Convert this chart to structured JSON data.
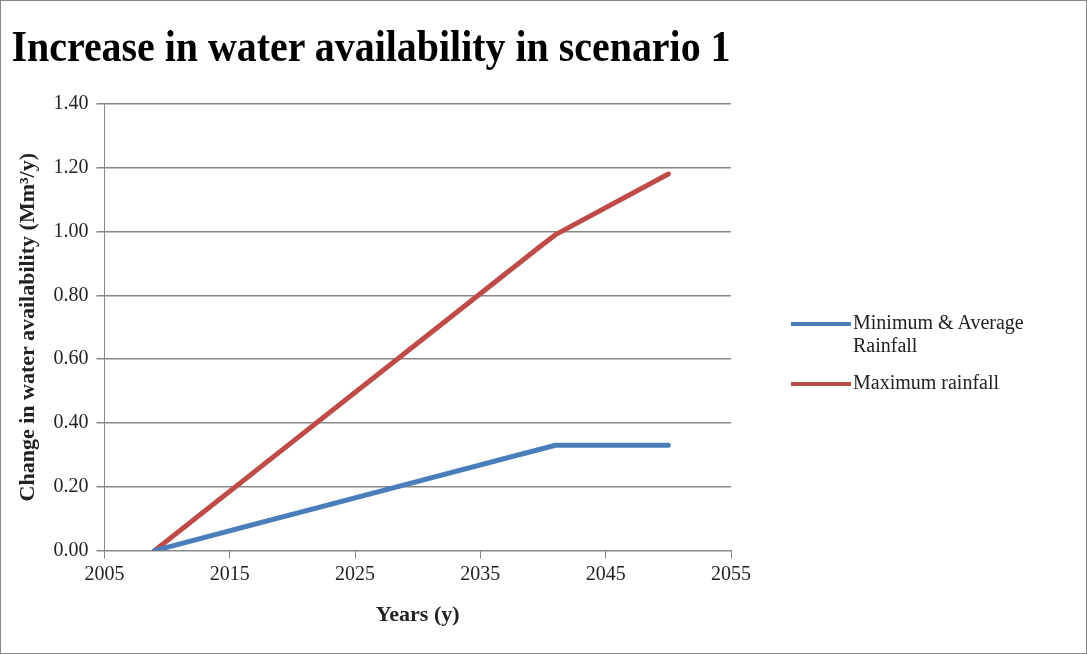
{
  "chart_data": {
    "type": "line",
    "title": "Increase in water availability in scenario 1",
    "xlabel": "Years (y)",
    "ylabel": "Change in water availability (Mm³/y)",
    "series": [
      {
        "name": "Minimum & Average Rainfall",
        "color": "#4a7ebb",
        "x": [
          2009,
          2040,
          2041,
          2050
        ],
        "values": [
          0,
          0.32,
          0.33,
          0.33
        ]
      },
      {
        "name": "Maximum rainfall",
        "color": "#be4b48",
        "x": [
          2009,
          2040,
          2041,
          2050
        ],
        "values": [
          0,
          0.96,
          0.99,
          1.18
        ]
      }
    ],
    "xlim": [
      2005,
      2055
    ],
    "xticks": [
      2005,
      2015,
      2025,
      2035,
      2045,
      2055
    ],
    "ylim": [
      0,
      1.4
    ],
    "yticks": [
      {
        "value": 0,
        "label": "0.00"
      },
      {
        "value": 0.2,
        "label": "0.20"
      },
      {
        "value": 0.4,
        "label": "0.40"
      },
      {
        "value": 0.6,
        "label": "0.60"
      },
      {
        "value": 0.8,
        "label": "0.80"
      },
      {
        "value": 1,
        "label": "1.00"
      },
      {
        "value": 1.2,
        "label": "1.20"
      },
      {
        "value": 1.4,
        "label": "1.40"
      }
    ],
    "grid": "y",
    "legend": "right",
    "marker": "none",
    "line_style": "solid"
  }
}
